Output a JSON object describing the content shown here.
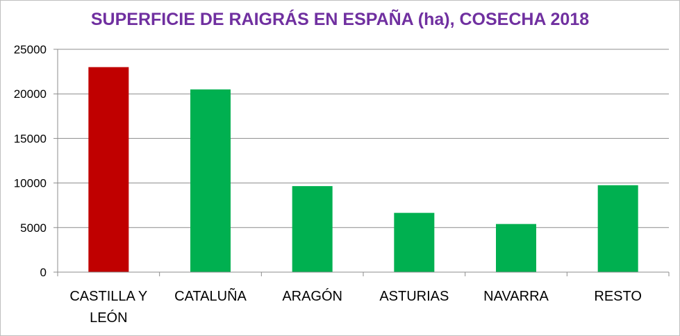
{
  "chart_data": {
    "type": "bar",
    "title": "SUPERFICIE DE RAIGRÁS EN ESPAÑA (ha), COSECHA 2018",
    "title_color": "#7030A0",
    "categories": [
      "CASTILLA Y LEÓN",
      "CATALUÑA",
      "ARAGÓN",
      "ASTURIAS",
      "NAVARRA",
      "RESTO"
    ],
    "category_lines": [
      [
        "CASTILLA Y",
        "LEÓN"
      ],
      [
        "CATALUÑA"
      ],
      [
        "ARAGÓN"
      ],
      [
        "ASTURIAS"
      ],
      [
        "NAVARRA"
      ],
      [
        "RESTO"
      ]
    ],
    "values": [
      23000,
      20500,
      9650,
      6650,
      5400,
      9750
    ],
    "bar_colors": [
      "#C00000",
      "#00B050",
      "#00B050",
      "#00B050",
      "#00B050",
      "#00B050"
    ],
    "ylim": [
      0,
      25000
    ],
    "yticks": [
      0,
      5000,
      10000,
      15000,
      20000,
      25000
    ],
    "grid": true,
    "legend": "none",
    "xlabel": "",
    "ylabel": ""
  }
}
